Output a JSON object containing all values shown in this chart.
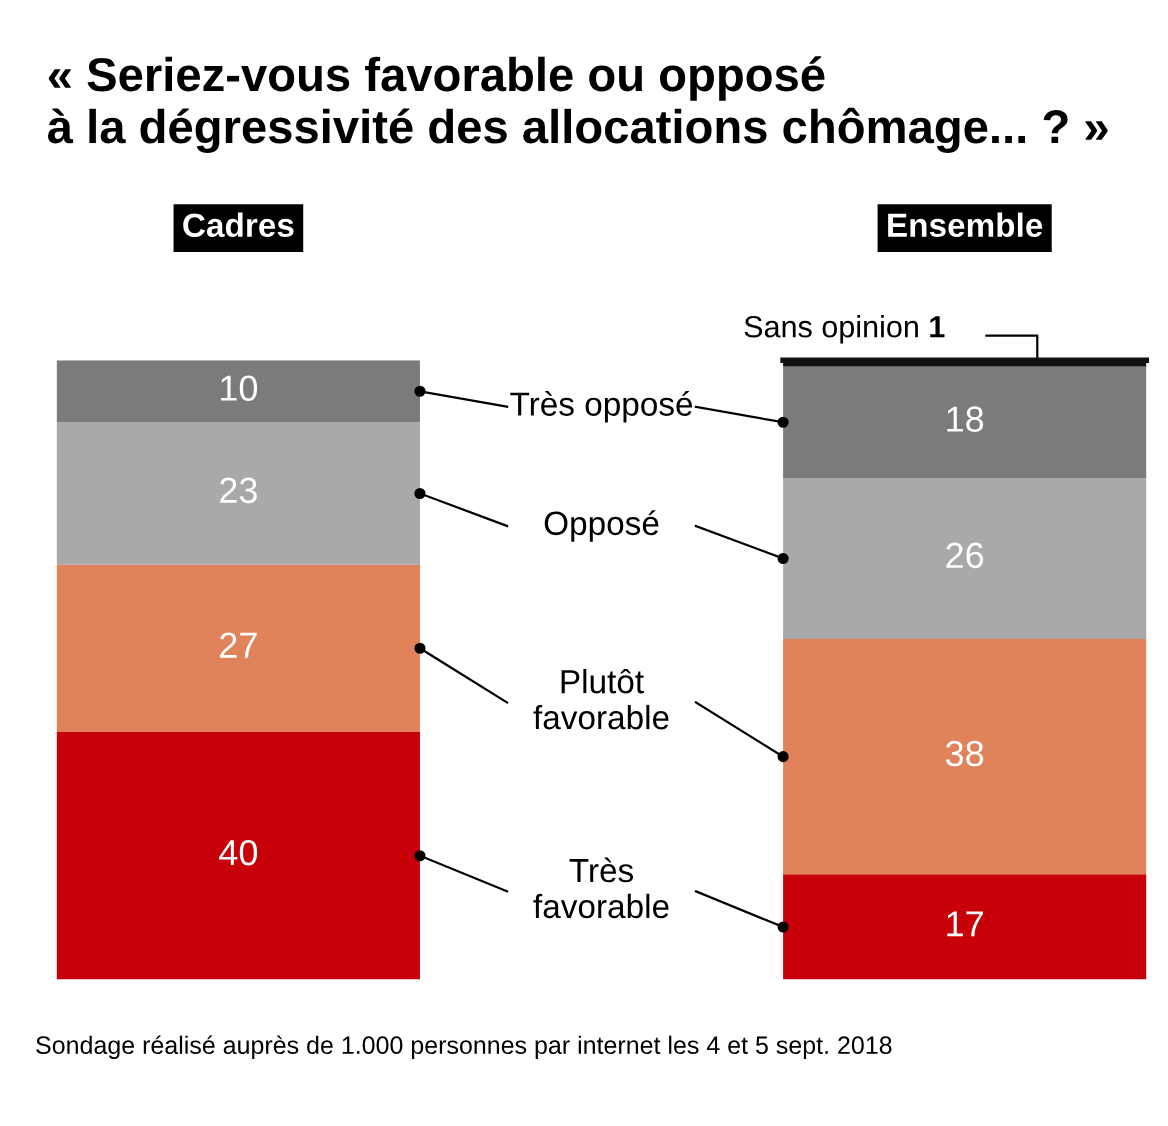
{
  "chart_data": {
    "type": "bar",
    "stacked": true,
    "title": "« Seriez-vous favorable ou opposé\nà la dégressivité des allocations chômage... ? »",
    "categories": [
      "Cadres",
      "Ensemble"
    ],
    "series": [
      {
        "name": "Très\nfavorable",
        "color": "#c8000a",
        "values": [
          40,
          17
        ]
      },
      {
        "name": "Plutôt\nfavorable",
        "color": "#e0825a",
        "values": [
          27,
          38
        ]
      },
      {
        "name": "Opposé",
        "color": "#a9a9a9",
        "values": [
          23,
          26
        ]
      },
      {
        "name": "Très opposé",
        "color": "#7b7b7b",
        "values": [
          10,
          18
        ]
      },
      {
        "name": "Sans opinion",
        "color": "#111111",
        "values": [
          null,
          1
        ]
      }
    ],
    "data_labels": true,
    "ylim": [
      0,
      100
    ],
    "tick_labels": "x",
    "annotations": [
      "Sondage réalisé auprès de 1.000 personnes par internet les 4 et 5 sept. 2018"
    ]
  }
}
